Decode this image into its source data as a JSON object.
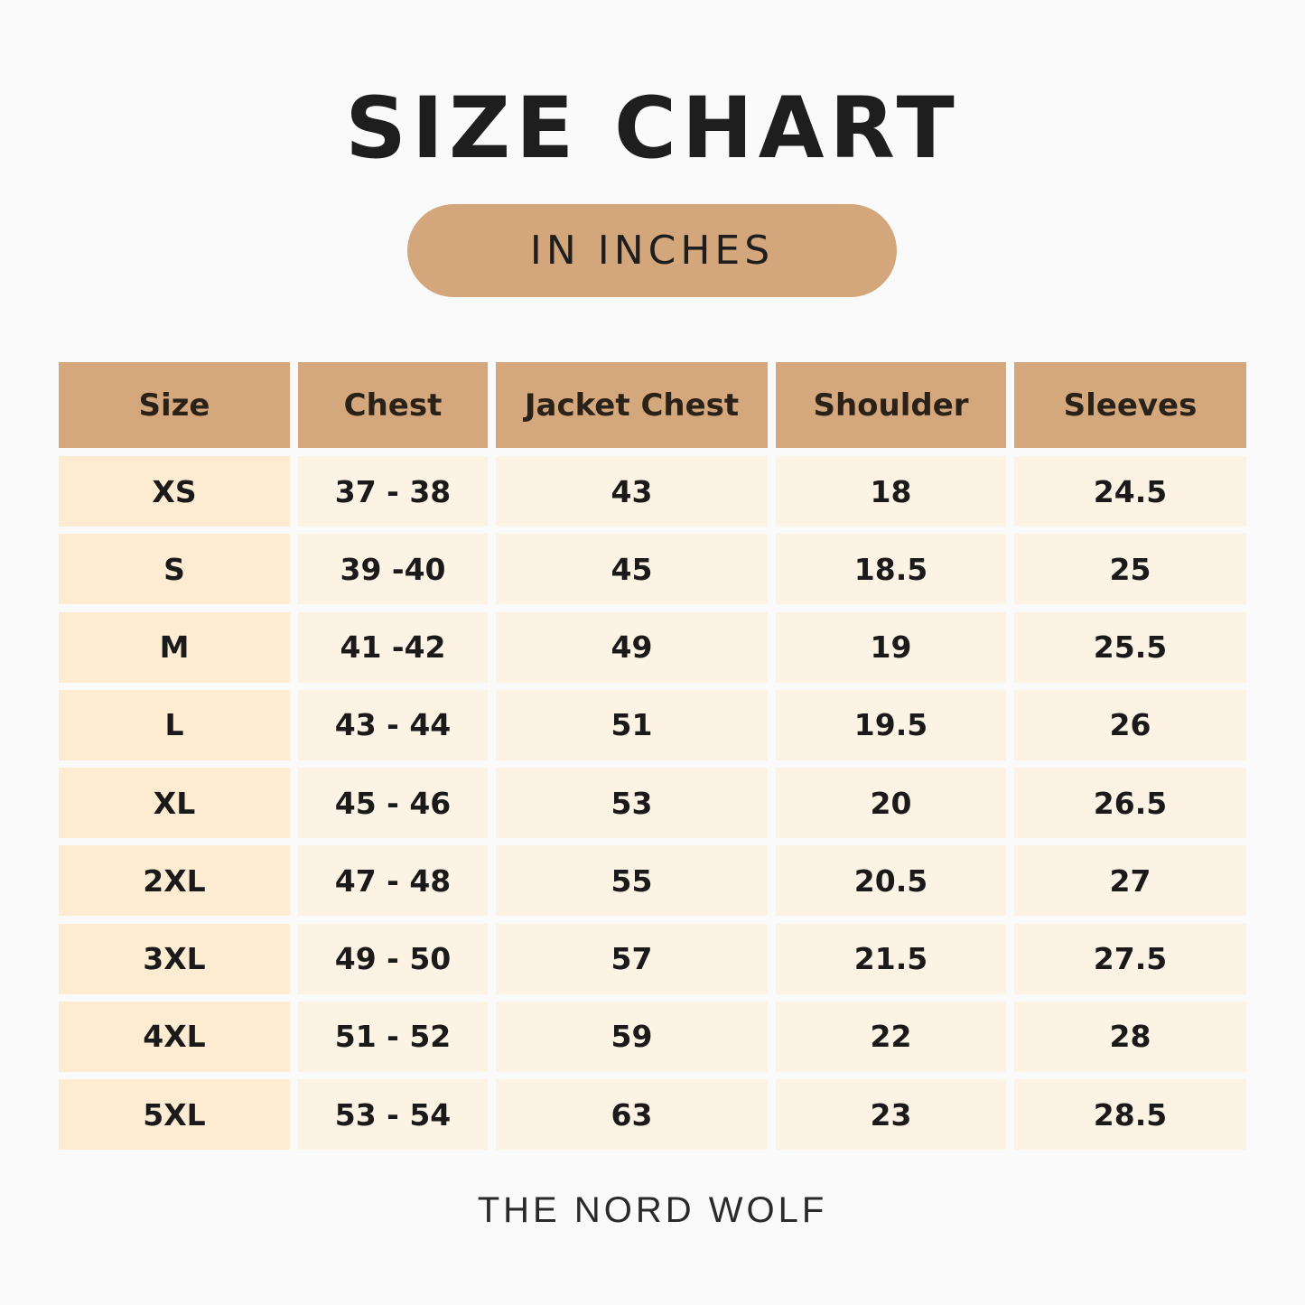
{
  "header": {
    "title": "SIZE CHART",
    "subtitle": "IN INCHES"
  },
  "table": {
    "columns": [
      "Size",
      "Chest",
      "Jacket Chest",
      "Shoulder",
      "Sleeves"
    ],
    "rows": [
      [
        "XS",
        "37 - 38",
        "43",
        "18",
        "24.5"
      ],
      [
        "S",
        "39 -40",
        "45",
        "18.5",
        "25"
      ],
      [
        "M",
        "41 -42",
        "49",
        "19",
        "25.5"
      ],
      [
        "L",
        "43 - 44",
        "51",
        "19.5",
        "26"
      ],
      [
        "XL",
        "45 - 46",
        "53",
        "20",
        "26.5"
      ],
      [
        "2XL",
        "47 - 48",
        "55",
        "20.5",
        "27"
      ],
      [
        "3XL",
        "49 - 50",
        "57",
        "21.5",
        "27.5"
      ],
      [
        "4XL",
        "51 - 52",
        "59",
        "22",
        "28"
      ],
      [
        "5XL",
        "53 - 54",
        "63",
        "23",
        "28.5"
      ]
    ]
  },
  "footer": {
    "brand": "THE NORD WOLF"
  }
}
